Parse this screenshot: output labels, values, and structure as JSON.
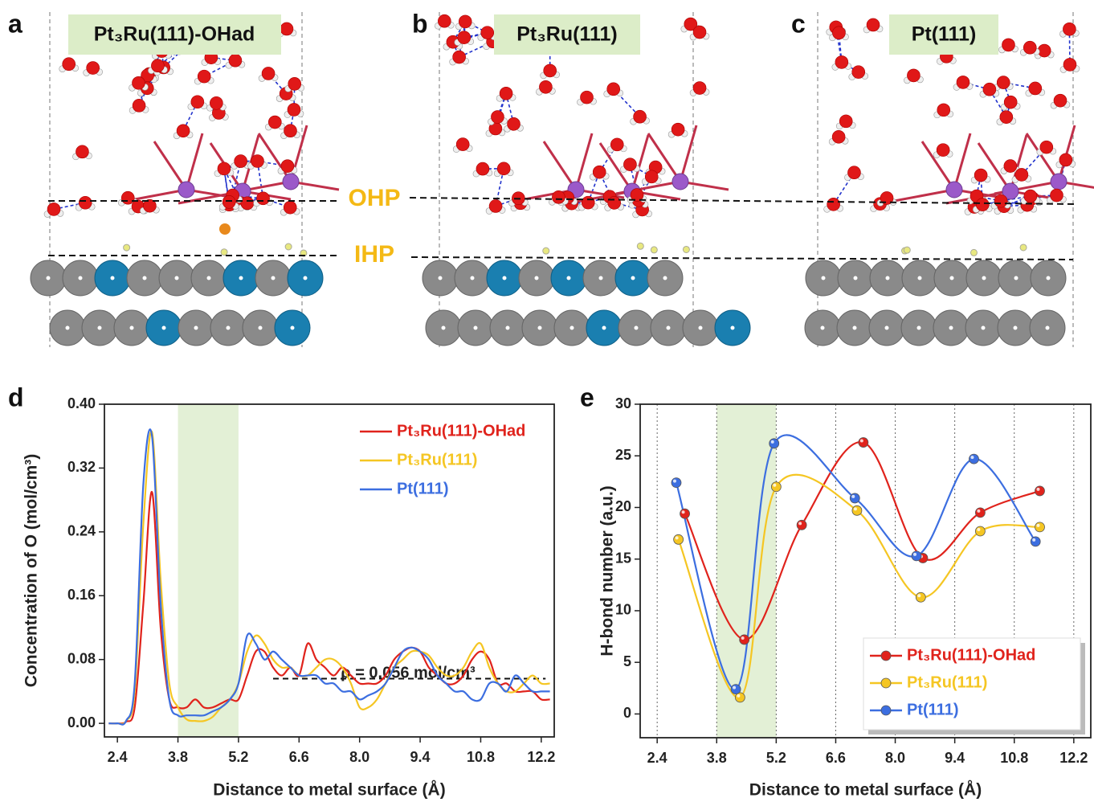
{
  "panels": [
    {
      "label": "a",
      "title": "Pt₃Ru(111)-OHad"
    },
    {
      "label": "b",
      "title": "Pt₃Ru(111)"
    },
    {
      "label": "c",
      "title": "Pt(111)"
    }
  ],
  "layer_labels": [
    "OHP",
    "IHP"
  ],
  "chart_data": [
    {
      "type": "line",
      "label": "d",
      "x_label": "Distance to metal surface (Å)",
      "y_label": "Concentration of O  (mol/cm³)",
      "annotation": "ρ = 0.056 mol/cm³",
      "reference_line": {
        "y": 0.056,
        "x": [
          6.0,
          12.3
        ]
      },
      "highlight": [
        3.8,
        5.2
      ],
      "legend": "upper right",
      "xlim": [
        2.1,
        12.5
      ],
      "ylim": [
        -0.017,
        0.4
      ],
      "xticks": [
        2.4,
        3.8,
        5.2,
        6.6,
        {
          "value": 8.0,
          "label": "8.0"
        },
        9.4,
        10.8,
        12.2
      ],
      "yticks": [
        {
          "value": 0,
          "label": "0.00"
        },
        0.08,
        0.16,
        0.24,
        0.32,
        {
          "value": 0.4,
          "label": "0.40"
        }
      ],
      "x": [
        2.2,
        2.4,
        2.6,
        2.8,
        3.0,
        3.2,
        3.4,
        3.6,
        3.8,
        4.0,
        4.2,
        4.4,
        4.6,
        4.8,
        5.0,
        5.2,
        5.4,
        5.6,
        5.8,
        6.0,
        6.2,
        6.4,
        6.6,
        6.8,
        7.0,
        7.2,
        7.4,
        7.6,
        7.8,
        8.0,
        8.2,
        8.4,
        8.6,
        8.8,
        9.0,
        9.2,
        9.4,
        9.6,
        9.8,
        10.0,
        10.2,
        10.4,
        10.6,
        10.8,
        11.0,
        11.2,
        11.4,
        11.6,
        11.8,
        12.0,
        12.2,
        12.4
      ],
      "series": [
        {
          "name": "Pt₃Ru(111)-OHad",
          "color": "#e0231c",
          "values": [
            0,
            0,
            0.002,
            0.02,
            0.15,
            0.29,
            0.12,
            0.03,
            0.02,
            0.02,
            0.03,
            0.02,
            0.02,
            0.025,
            0.03,
            0.03,
            0.06,
            0.09,
            0.09,
            0.07,
            0.06,
            0.07,
            0.06,
            0.1,
            0.08,
            0.07,
            0.06,
            0.07,
            0.06,
            0.05,
            0.05,
            0.05,
            0.06,
            0.08,
            0.09,
            0.095,
            0.09,
            0.07,
            0.06,
            0.05,
            0.05,
            0.06,
            0.08,
            0.09,
            0.08,
            0.05,
            0.05,
            0.04,
            0.04,
            0.04,
            0.03,
            0.03
          ]
        },
        {
          "name": "Pt₃Ru(111)",
          "color": "#f5c623",
          "values": [
            0,
            0,
            0.003,
            0.04,
            0.25,
            0.365,
            0.18,
            0.05,
            0.02,
            0.005,
            0.003,
            0.003,
            0.008,
            0.02,
            0.03,
            0.05,
            0.09,
            0.11,
            0.1,
            0.08,
            0.07,
            0.07,
            0.06,
            0.06,
            0.07,
            0.08,
            0.08,
            0.07,
            0.05,
            0.02,
            0.02,
            0.03,
            0.05,
            0.07,
            0.08,
            0.09,
            0.09,
            0.085,
            0.07,
            0.06,
            0.06,
            0.07,
            0.09,
            0.1,
            0.07,
            0.05,
            0.04,
            0.04,
            0.05,
            0.06,
            0.05,
            0.05
          ]
        },
        {
          "name": "Pt(111)",
          "color": "#3c6ee0",
          "values": [
            0,
            0,
            0.003,
            0.05,
            0.3,
            0.36,
            0.15,
            0.03,
            0.01,
            0.01,
            0.01,
            0.01,
            0.015,
            0.02,
            0.03,
            0.05,
            0.11,
            0.1,
            0.08,
            0.09,
            0.08,
            0.07,
            0.06,
            0.06,
            0.06,
            0.05,
            0.05,
            0.04,
            0.04,
            0.03,
            0.035,
            0.04,
            0.05,
            0.07,
            0.09,
            0.095,
            0.09,
            0.08,
            0.06,
            0.05,
            0.04,
            0.04,
            0.03,
            0.03,
            0.05,
            0.05,
            0.04,
            0.06,
            0.05,
            0.04,
            0.04,
            0.04
          ]
        }
      ]
    },
    {
      "type": "line",
      "label": "e",
      "x_label": "Distance to metal surface (Å)",
      "y_label": "H-bond number (a.u.)",
      "highlight": [
        3.8,
        5.2
      ],
      "grid": true,
      "markers": true,
      "legend": "lower right",
      "xlim": [
        2.0,
        12.6
      ],
      "ylim": [
        -2.3,
        30
      ],
      "xticks": [
        2.4,
        3.8,
        5.2,
        6.6,
        {
          "value": 8.0,
          "label": "8.0"
        },
        9.4,
        10.8,
        12.2
      ],
      "yticks": [
        0,
        5,
        10,
        15,
        20,
        25,
        30
      ],
      "series": [
        {
          "name": "Pt₃Ru(111)-OHad",
          "color": "#e0231c",
          "x": [
            3.05,
            4.45,
            5.8,
            7.25,
            8.65,
            10.0,
            11.4
          ],
          "values": [
            19.4,
            7.2,
            18.3,
            26.3,
            15.1,
            19.5,
            21.6
          ]
        },
        {
          "name": "Pt₃Ru(111)",
          "color": "#f5c623",
          "x": [
            2.9,
            4.35,
            5.2,
            7.1,
            8.6,
            10.0,
            11.4
          ],
          "values": [
            16.9,
            1.6,
            22.0,
            19.7,
            11.3,
            17.7,
            18.1
          ]
        },
        {
          "name": "Pt(111)",
          "color": "#3c6ee0",
          "x": [
            2.85,
            4.25,
            5.15,
            7.05,
            8.5,
            9.85,
            11.3
          ],
          "values": [
            22.4,
            2.4,
            26.2,
            20.9,
            15.3,
            24.7,
            16.7
          ]
        }
      ]
    }
  ]
}
